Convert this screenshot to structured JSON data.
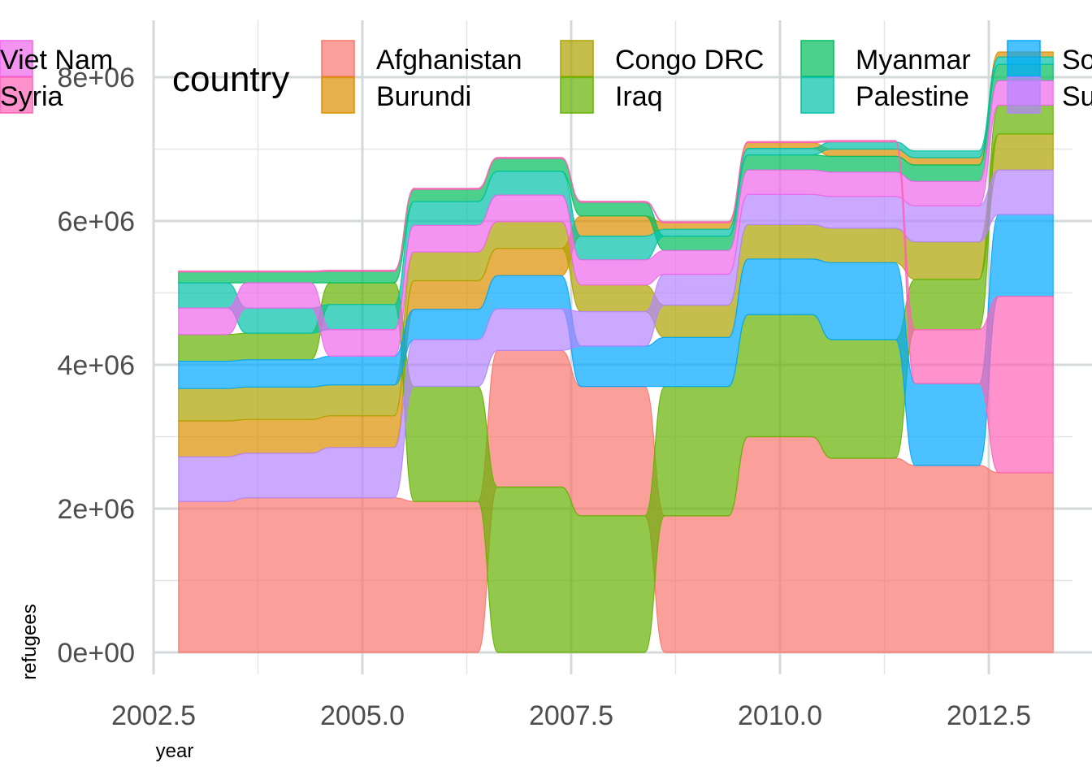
{
  "chart_data": {
    "type": "area",
    "subtype": "bump-stream (ranked stacked area, smoothed)",
    "xlabel": "year",
    "ylabel": "refugees",
    "xlim": [
      2002.5,
      2013.0
    ],
    "ylim": [
      0,
      8500000
    ],
    "x_ticks": [
      2002.5,
      2005.0,
      2007.5,
      2010.0,
      2012.5
    ],
    "x_tick_labels": [
      "2002.5",
      "2005.0",
      "2007.5",
      "2010.0",
      "2012.5"
    ],
    "y_ticks": [
      0,
      2000000,
      4000000,
      6000000,
      8000000
    ],
    "y_tick_labels": [
      "0e+00",
      "2e+06",
      "4e+06",
      "6e+06",
      "8e+06"
    ],
    "grid": true,
    "legend": {
      "title": "country",
      "position": "top",
      "columns": 4
    },
    "x": [
      2003,
      2004,
      2005,
      2006,
      2007,
      2008,
      2009,
      2010,
      2011,
      2012,
      2013
    ],
    "series": [
      {
        "name": "Afghanistan",
        "color": "#F8766D",
        "values": [
          2100000,
          2150000,
          2150000,
          2100000,
          1900000,
          1800000,
          1900000,
          3000000,
          2700000,
          2600000,
          2500000
        ]
      },
      {
        "name": "Burundi",
        "color": "#DB8E00",
        "values": [
          500000,
          470000,
          440000,
          400000,
          380000,
          280000,
          90000,
          80000,
          100000,
          100000,
          70000
        ]
      },
      {
        "name": "Congo DRC",
        "color": "#AEA200",
        "values": [
          450000,
          450000,
          430000,
          400000,
          370000,
          370000,
          450000,
          480000,
          480000,
          520000,
          500000
        ]
      },
      {
        "name": "Iraq",
        "color": "#64B200",
        "values": [
          370000,
          370000,
          300000,
          1600000,
          2300000,
          1900000,
          1800000,
          1700000,
          1650000,
          700000,
          400000
        ]
      },
      {
        "name": "Myanmar",
        "color": "#00BD5C",
        "values": [
          150000,
          150000,
          160000,
          170000,
          180000,
          190000,
          200000,
          210000,
          220000,
          230000,
          230000
        ]
      },
      {
        "name": "Palestine",
        "color": "#00C1A7",
        "values": [
          350000,
          350000,
          350000,
          330000,
          330000,
          330000,
          95000,
          90000,
          100000,
          95000,
          100000
        ]
      },
      {
        "name": "Somalia",
        "color": "#00A6FF",
        "values": [
          380000,
          380000,
          400000,
          420000,
          460000,
          560000,
          680000,
          770000,
          1070000,
          1140000,
          1140000
        ]
      },
      {
        "name": "Sudan",
        "color": "#B385FF",
        "values": [
          620000,
          620000,
          700000,
          650000,
          580000,
          480000,
          430000,
          420000,
          440000,
          500000,
          620000
        ]
      },
      {
        "name": "Viet Nam",
        "color": "#EF67EB",
        "values": [
          370000,
          350000,
          370000,
          370000,
          370000,
          350000,
          330000,
          340000,
          340000,
          340000,
          340000
        ]
      },
      {
        "name": "Syria",
        "color": "#FF63B6",
        "values": [
          15000,
          15000,
          15000,
          15000,
          15000,
          15000,
          15000,
          15000,
          20000,
          750000,
          2450000
        ]
      }
    ]
  }
}
